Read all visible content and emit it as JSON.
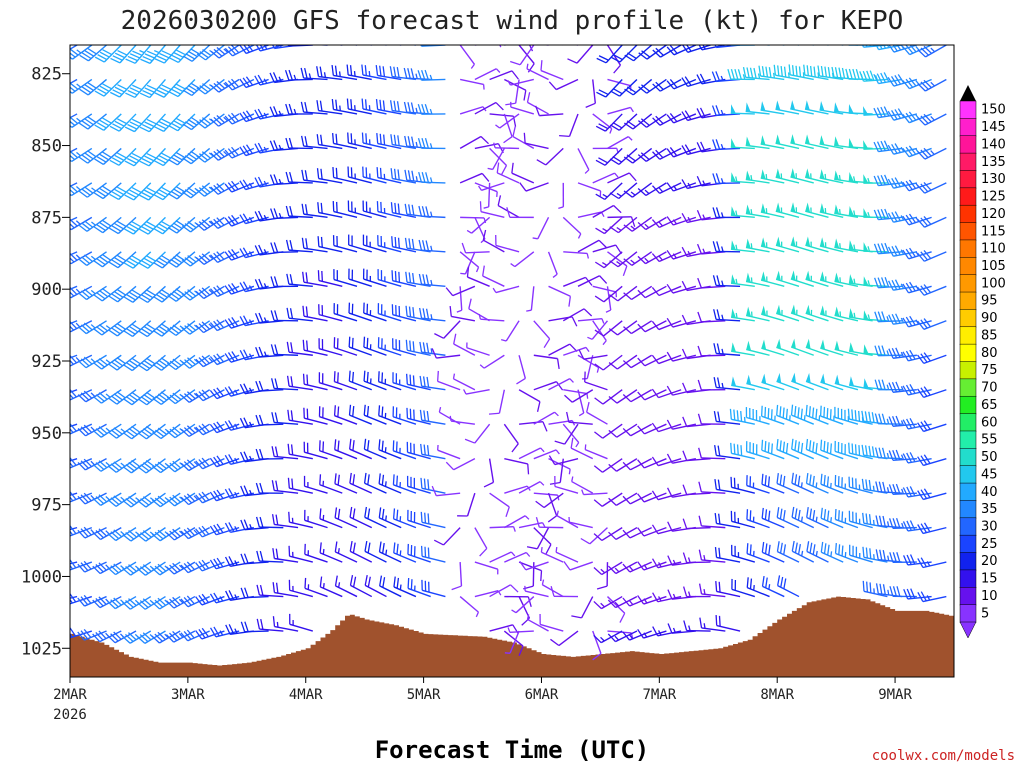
{
  "chart_data": {
    "type": "wind-barb-profile",
    "title": "2026030200 GFS forecast wind profile (kt) for KEPO",
    "xlabel": "Forecast Time (UTC)",
    "credit": "coolwx.com/models",
    "x_start_day": 2,
    "x_end_day": 9.5,
    "x_ticks": [
      {
        "label": "2MAR",
        "sub": "2026",
        "day": 2
      },
      {
        "label": "3MAR",
        "sub": "",
        "day": 3
      },
      {
        "label": "4MAR",
        "sub": "",
        "day": 4
      },
      {
        "label": "5MAR",
        "sub": "",
        "day": 5
      },
      {
        "label": "6MAR",
        "sub": "",
        "day": 6
      },
      {
        "label": "7MAR",
        "sub": "",
        "day": 7
      },
      {
        "label": "8MAR",
        "sub": "",
        "day": 8
      },
      {
        "label": "9MAR",
        "sub": "",
        "day": 9
      }
    ],
    "ylim": [
      815,
      1035
    ],
    "y_ticks": [
      {
        "label": "825",
        "value": 825
      },
      {
        "label": "850",
        "value": 850
      },
      {
        "label": "875",
        "value": 875
      },
      {
        "label": "900",
        "value": 900
      },
      {
        "label": "925",
        "value": 925
      },
      {
        "label": "950",
        "value": 950
      },
      {
        "label": "975",
        "value": 975
      },
      {
        "label": "1000",
        "value": 1000
      },
      {
        "label": "1025",
        "value": 1025
      }
    ],
    "barb_levels": [
      815,
      827,
      839,
      851,
      863,
      875,
      887,
      899,
      911,
      923,
      935,
      947,
      959,
      971,
      983,
      995,
      1007,
      1019,
      1031
    ],
    "barb_time_step_hours": 3,
    "surface_pressure": [
      {
        "day": 2.0,
        "p": 1020
      },
      {
        "day": 2.25,
        "p": 1023
      },
      {
        "day": 2.5,
        "p": 1028
      },
      {
        "day": 2.75,
        "p": 1030
      },
      {
        "day": 3.0,
        "p": 1030
      },
      {
        "day": 3.25,
        "p": 1031
      },
      {
        "day": 3.5,
        "p": 1030
      },
      {
        "day": 3.75,
        "p": 1028
      },
      {
        "day": 4.0,
        "p": 1025
      },
      {
        "day": 4.2,
        "p": 1019
      },
      {
        "day": 4.35,
        "p": 1013
      },
      {
        "day": 4.5,
        "p": 1015
      },
      {
        "day": 4.75,
        "p": 1017
      },
      {
        "day": 5.0,
        "p": 1020
      },
      {
        "day": 5.5,
        "p": 1021
      },
      {
        "day": 5.75,
        "p": 1023
      },
      {
        "day": 6.0,
        "p": 1027
      },
      {
        "day": 6.25,
        "p": 1028
      },
      {
        "day": 6.5,
        "p": 1027
      },
      {
        "day": 6.75,
        "p": 1026
      },
      {
        "day": 7.0,
        "p": 1027
      },
      {
        "day": 7.25,
        "p": 1026
      },
      {
        "day": 7.5,
        "p": 1025
      },
      {
        "day": 7.75,
        "p": 1022
      },
      {
        "day": 8.0,
        "p": 1015
      },
      {
        "day": 8.25,
        "p": 1009
      },
      {
        "day": 8.5,
        "p": 1007
      },
      {
        "day": 8.75,
        "p": 1008
      },
      {
        "day": 9.0,
        "p": 1012
      },
      {
        "day": 9.25,
        "p": 1012
      },
      {
        "day": 9.5,
        "p": 1014
      }
    ],
    "ground_color": "#a0522d",
    "colorbar": {
      "labels": [
        "150",
        "145",
        "140",
        "135",
        "130",
        "125",
        "120",
        "115",
        "110",
        "105",
        "100",
        "95",
        "90",
        "85",
        "80",
        "75",
        "70",
        "65",
        "60",
        "55",
        "50",
        "45",
        "40",
        "35",
        "30",
        "25",
        "20",
        "15",
        "10",
        "5"
      ],
      "colors": [
        "#ff33ff",
        "#ff1fcc",
        "#ff1499",
        "#ff1a66",
        "#ff1a40",
        "#ff1a1a",
        "#ff3300",
        "#ff5500",
        "#ff7700",
        "#ff8800",
        "#ff9900",
        "#ffaa00",
        "#ffcc00",
        "#ffee00",
        "#ffff00",
        "#c8f000",
        "#66ee33",
        "#22ee22",
        "#22ee66",
        "#22eeaa",
        "#22ddcc",
        "#22c8ee",
        "#22aaff",
        "#2288ff",
        "#2266ff",
        "#1a44ff",
        "#1122ee",
        "#3311ee",
        "#6611ee",
        "#8833ff"
      ]
    }
  }
}
